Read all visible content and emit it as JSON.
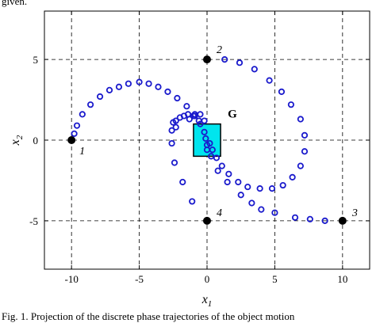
{
  "captions": {
    "top": "given.",
    "bottom": "Fig. 1. Projection of the discrete phase trajectories of the object motion"
  },
  "chart_data": {
    "type": "scatter",
    "title": "",
    "xlabel": "x",
    "xlabel_sub": "1",
    "ylabel": "x",
    "ylabel_sub": "2",
    "xlim": [
      -12,
      12
    ],
    "ylim": [
      -8,
      8
    ],
    "x_ticks": [
      -10,
      -5,
      0,
      5,
      10
    ],
    "y_ticks": [
      -5,
      0,
      5
    ],
    "x_tick_labels": [
      "-10",
      "-5",
      "0",
      "5",
      "10"
    ],
    "y_tick_labels": [
      "-5",
      "0",
      "5"
    ],
    "grid": true,
    "grid_style": "dashed",
    "colors": {
      "markers": "#1a1acc",
      "start_points": "#000000",
      "target_fill": "#00e5ee",
      "target_edge": "#000000",
      "grid": "#000000"
    },
    "target": {
      "label": "G",
      "x_range": [
        -1,
        1
      ],
      "y_range": [
        -1,
        1
      ]
    },
    "start_points": [
      {
        "label": "1",
        "x": -10,
        "y": 0
      },
      {
        "label": "2",
        "x": 0,
        "y": 5
      },
      {
        "label": "3",
        "x": 10,
        "y": -5
      },
      {
        "label": "4",
        "x": 0,
        "y": -5
      }
    ],
    "series": [
      {
        "values": [
          [
            -9.8,
            0.4
          ],
          [
            -9.6,
            0.9
          ],
          [
            -9.2,
            1.6
          ],
          [
            -8.6,
            2.2
          ],
          [
            -7.9,
            2.7
          ],
          [
            -7.2,
            3.1
          ],
          [
            -6.5,
            3.3
          ],
          [
            -5.8,
            3.5
          ],
          [
            -5.0,
            3.6
          ],
          [
            -4.3,
            3.5
          ],
          [
            -3.6,
            3.3
          ],
          [
            -2.9,
            3.0
          ],
          [
            -2.2,
            2.6
          ],
          [
            -1.5,
            2.1
          ],
          [
            -0.9,
            1.6
          ],
          [
            -0.5,
            1.0
          ],
          [
            -0.2,
            0.5
          ],
          [
            -0.1,
            0.1
          ],
          [
            0.0,
            -0.3
          ]
        ]
      },
      {
        "values": [
          [
            1.3,
            5.0
          ],
          [
            2.4,
            4.8
          ],
          [
            3.5,
            4.4
          ],
          [
            4.6,
            3.7
          ],
          [
            5.5,
            3.0
          ],
          [
            6.2,
            2.2
          ],
          [
            6.9,
            1.3
          ],
          [
            7.2,
            0.3
          ],
          [
            7.2,
            -0.7
          ],
          [
            6.9,
            -1.6
          ],
          [
            6.3,
            -2.3
          ],
          [
            5.6,
            -2.8
          ],
          [
            4.8,
            -3.0
          ],
          [
            3.9,
            -3.0
          ],
          [
            3.0,
            -2.9
          ],
          [
            2.3,
            -2.6
          ],
          [
            1.6,
            -2.1
          ],
          [
            1.1,
            -1.6
          ],
          [
            0.7,
            -1.1
          ],
          [
            0.4,
            -0.6
          ],
          [
            0.2,
            -0.2
          ]
        ]
      },
      {
        "values": [
          [
            8.7,
            -5.0
          ],
          [
            7.6,
            -4.9
          ],
          [
            6.5,
            -4.8
          ],
          [
            5.0,
            -4.5
          ],
          [
            4.0,
            -4.3
          ],
          [
            3.3,
            -3.9
          ],
          [
            2.5,
            -3.4
          ],
          [
            1.5,
            -2.6
          ],
          [
            0.8,
            -1.9
          ],
          [
            0.3,
            -1.0
          ],
          [
            0.0,
            -0.6
          ],
          [
            -1.3,
            1.3
          ],
          [
            -0.9,
            1.5
          ],
          [
            -0.5,
            1.6
          ],
          [
            -0.2,
            1.2
          ]
        ]
      },
      {
        "values": [
          [
            -1.1,
            -3.8
          ],
          [
            -1.8,
            -2.6
          ],
          [
            -2.4,
            -1.4
          ],
          [
            -2.6,
            -0.2
          ],
          [
            -2.6,
            0.6
          ],
          [
            -2.5,
            1.1
          ],
          [
            -2.3,
            1.2
          ],
          [
            -2.3,
            0.8
          ],
          [
            -2.0,
            1.4
          ],
          [
            -1.7,
            1.5
          ],
          [
            -1.4,
            1.6
          ],
          [
            -1.0,
            1.5
          ],
          [
            -0.6,
            1.2
          ]
        ]
      }
    ]
  }
}
